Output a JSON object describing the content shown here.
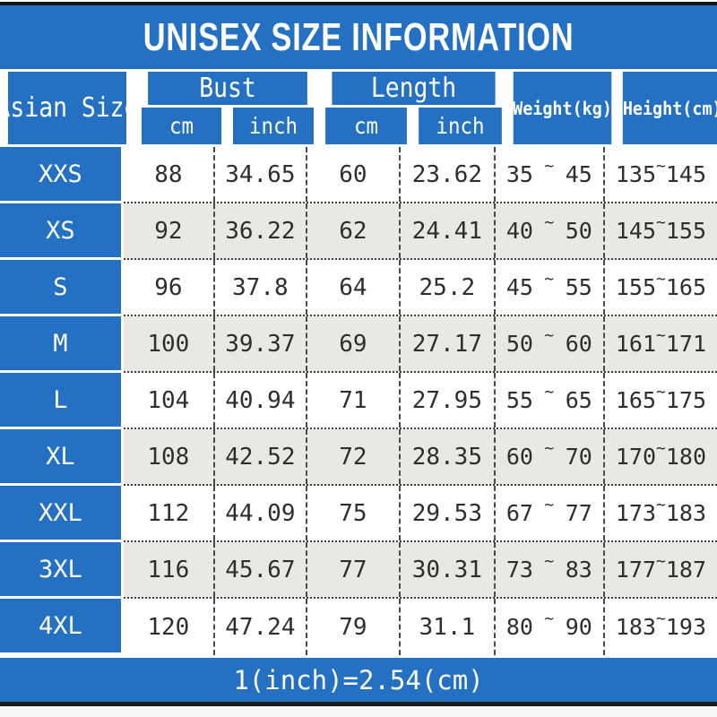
{
  "chart_data": {
    "type": "table",
    "title": "UNISEX SIZE INFORMATION",
    "header": {
      "asian_size": "Asian Size",
      "bust": "Bust",
      "length": "Length",
      "bust_cm": "cm",
      "bust_inch": "inch",
      "length_cm": "cm",
      "length_inch": "inch",
      "weight": "Weight(kg)",
      "height": "Height(cm)"
    },
    "rows": [
      {
        "size": "XXS",
        "bust_cm": "88",
        "bust_inch": "34.65",
        "length_cm": "60",
        "length_inch": "23.62",
        "weight_min": "35",
        "weight_max": "45",
        "height_min": "135",
        "height_max": "145"
      },
      {
        "size": "XS",
        "bust_cm": "92",
        "bust_inch": "36.22",
        "length_cm": "62",
        "length_inch": "24.41",
        "weight_min": "40",
        "weight_max": "50",
        "height_min": "145",
        "height_max": "155"
      },
      {
        "size": "S",
        "bust_cm": "96",
        "bust_inch": "37.8",
        "length_cm": "64",
        "length_inch": "25.2",
        "weight_min": "45",
        "weight_max": "55",
        "height_min": "155",
        "height_max": "165"
      },
      {
        "size": "M",
        "bust_cm": "100",
        "bust_inch": "39.37",
        "length_cm": "69",
        "length_inch": "27.17",
        "weight_min": "50",
        "weight_max": "60",
        "height_min": "161",
        "height_max": "171"
      },
      {
        "size": "L",
        "bust_cm": "104",
        "bust_inch": "40.94",
        "length_cm": "71",
        "length_inch": "27.95",
        "weight_min": "55",
        "weight_max": "65",
        "height_min": "165",
        "height_max": "175"
      },
      {
        "size": "XL",
        "bust_cm": "108",
        "bust_inch": "42.52",
        "length_cm": "72",
        "length_inch": "28.35",
        "weight_min": "60",
        "weight_max": "70",
        "height_min": "170",
        "height_max": "180"
      },
      {
        "size": "XXL",
        "bust_cm": "112",
        "bust_inch": "44.09",
        "length_cm": "75",
        "length_inch": "29.53",
        "weight_min": "67",
        "weight_max": "77",
        "height_min": "173",
        "height_max": "183"
      },
      {
        "size": "3XL",
        "bust_cm": "116",
        "bust_inch": "45.67",
        "length_cm": "77",
        "length_inch": "30.31",
        "weight_min": "73",
        "weight_max": "83",
        "height_min": "177",
        "height_max": "187"
      },
      {
        "size": "4XL",
        "bust_cm": "120",
        "bust_inch": "47.24",
        "length_cm": "79",
        "length_inch": "31.1",
        "weight_min": "80",
        "weight_max": "90",
        "height_min": "183",
        "height_max": "193"
      }
    ],
    "footer_note": "1(inch)=2.54(cm)"
  },
  "symbols": {
    "tilde": "~"
  },
  "colors": {
    "accent_blue": "#2471c4",
    "alt_row_gray": "#e8e8e6",
    "bar_black": "#141414",
    "text_dark": "#2e2e2e",
    "text_white": "#ffffff"
  }
}
